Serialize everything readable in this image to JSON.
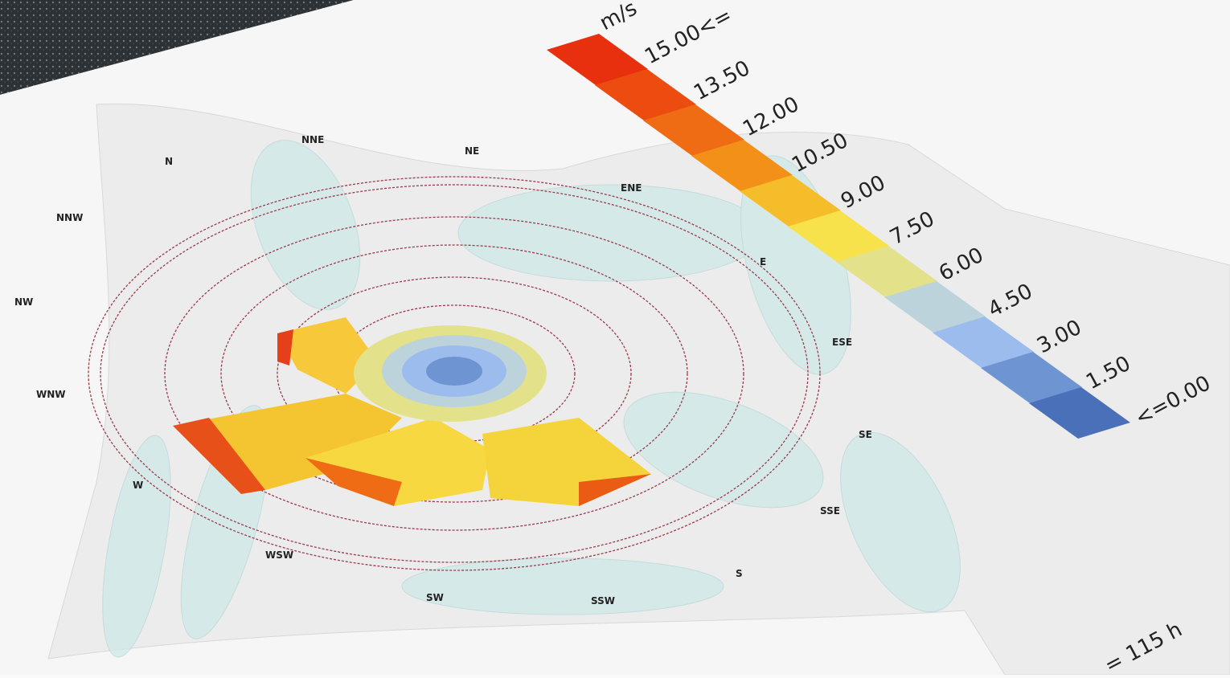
{
  "legend": {
    "unit": "m/s",
    "labels": [
      "15.00<=",
      "13.50",
      "12.00",
      "10.50",
      "9.00",
      "7.50",
      "6.00",
      "4.50",
      "3.00",
      "1.50",
      "<=0.00"
    ],
    "colors": [
      "#e8300f",
      "#ec4c10",
      "#ef6c14",
      "#f29017",
      "#f5bd2a",
      "#f8e24b",
      "#e3e28a",
      "#bcd3dc",
      "#9cbcee",
      "#6e95d2",
      "#4a70b9"
    ]
  },
  "directions": [
    "N",
    "NNE",
    "NE",
    "ENE",
    "E",
    "ESE",
    "SE",
    "SSE",
    "S",
    "SSW",
    "SW",
    "WSW",
    "W",
    "WNW",
    "NW",
    "NNW"
  ],
  "footer": "= 115 h"
}
